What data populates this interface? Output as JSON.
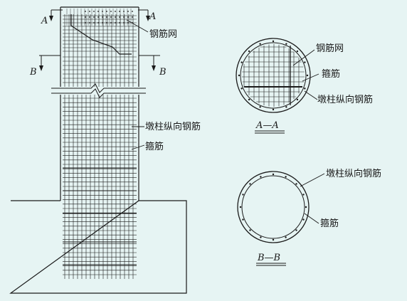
{
  "labels": {
    "mesh_left": "钢筋网",
    "long_bar_left": "墩柱纵向钢筋",
    "stirrup_left": "箍筋",
    "mesh_a": "钢筋网",
    "stirrup_a": "箍筋",
    "long_bar_a": "墩柱纵向钢筋",
    "long_bar_b": "墩柱纵向钢筋",
    "stirrup_b": "箍筋"
  },
  "section_marks": {
    "a_left": "A",
    "a_right": "A",
    "b_left": "B",
    "b_right": "B"
  },
  "section_titles": {
    "a": "A—A",
    "b": "B—B"
  },
  "colors": {
    "background": "#e6f4f3",
    "ink": "#1a1a1a"
  }
}
